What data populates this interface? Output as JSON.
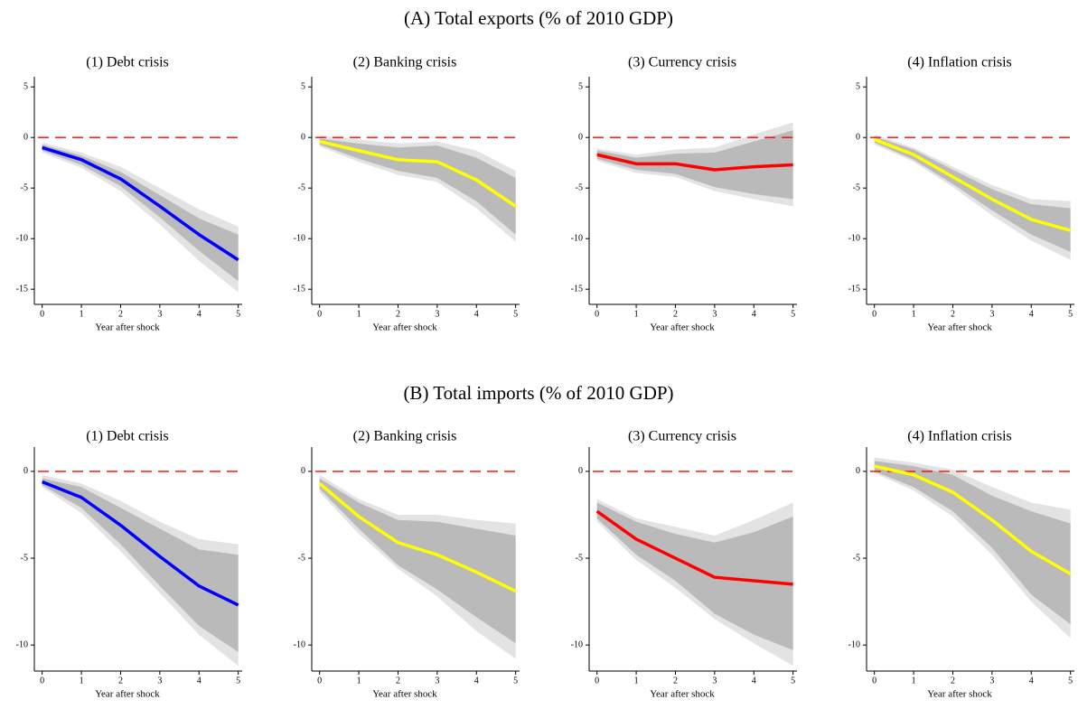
{
  "panel_titles": [
    "(A) Total exports (% of 2010 GDP)",
    "(B) Total imports (% of 2010 GDP)"
  ],
  "chart_data": [
    {
      "type": "line",
      "title": "(1) Debt crisis",
      "xlabel": "Year after shock",
      "x": [
        0,
        1,
        2,
        3,
        4,
        5
      ],
      "xlim": [
        -0.2,
        5.1
      ],
      "xticks": [
        0,
        1,
        2,
        3,
        4,
        5
      ],
      "ylim": [
        -16.5,
        6
      ],
      "yticks": [
        5,
        0,
        -5,
        -10,
        -15
      ],
      "hline": {
        "value": 0,
        "color": "#ff0000"
      },
      "bands": [
        {
          "color": "#e3e3e3",
          "lower": [
            -1.5,
            -3,
            -5.3,
            -8.6,
            -12.2,
            -15.3
          ],
          "upper": [
            -0.5,
            -1.5,
            -2.9,
            -5,
            -7.1,
            -8.8
          ]
        },
        {
          "color": "#bababa",
          "lower": [
            -1.3,
            -2.7,
            -4.8,
            -7.9,
            -11.2,
            -14.2
          ],
          "upper": [
            -0.7,
            -1.8,
            -3.4,
            -5.7,
            -8,
            -9.6
          ]
        }
      ],
      "series": [
        {
          "color": "#0000ff",
          "values": [
            -1,
            -2.2,
            -4.1,
            -6.8,
            -9.6,
            -12.1
          ]
        }
      ]
    },
    {
      "type": "line",
      "title": "(2) Banking crisis",
      "xlabel": "Year after shock",
      "x": [
        0,
        1,
        2,
        3,
        4,
        5
      ],
      "xlim": [
        -0.2,
        5.1
      ],
      "xticks": [
        0,
        1,
        2,
        3,
        4,
        5
      ],
      "ylim": [
        -16.5,
        6
      ],
      "yticks": [
        5,
        0,
        -5,
        -10,
        -15
      ],
      "hline": {
        "value": 0,
        "color": "#ff0000"
      },
      "bands": [
        {
          "color": "#e3e3e3",
          "lower": [
            -0.9,
            -2.4,
            -3.7,
            -4.4,
            -7,
            -10.3
          ],
          "upper": [
            0.2,
            -0.2,
            -0.6,
            -0.4,
            -1.3,
            -3.3
          ]
        },
        {
          "color": "#bababa",
          "lower": [
            -0.7,
            -2.1,
            -3.3,
            -4,
            -6.3,
            -9.6
          ],
          "upper": [
            -0.1,
            -0.6,
            -1,
            -0.8,
            -2,
            -4
          ]
        }
      ],
      "series": [
        {
          "color": "#ffff00",
          "values": [
            -0.4,
            -1.3,
            -2.2,
            -2.4,
            -4.2,
            -6.8
          ]
        }
      ]
    },
    {
      "type": "line",
      "title": "(3) Currency crisis",
      "xlabel": "Year after shock",
      "x": [
        0,
        1,
        2,
        3,
        4,
        5
      ],
      "xlim": [
        -0.2,
        5.1
      ],
      "xticks": [
        0,
        1,
        2,
        3,
        4,
        5
      ],
      "ylim": [
        -16.5,
        6
      ],
      "yticks": [
        5,
        0,
        -5,
        -10,
        -15
      ],
      "hline": {
        "value": 0,
        "color": "#ff0000"
      },
      "bands": [
        {
          "color": "#e3e3e3",
          "lower": [
            -2.3,
            -3.5,
            -3.9,
            -5.3,
            -6.1,
            -6.8
          ],
          "upper": [
            -1.1,
            -1.7,
            -1.2,
            -1,
            0.3,
            1.5
          ]
        },
        {
          "color": "#bababa",
          "lower": [
            -2.1,
            -3.2,
            -3.6,
            -4.9,
            -5.6,
            -6.1
          ],
          "upper": [
            -1.3,
            -2,
            -1.6,
            -1.5,
            -0.4,
            0.7
          ]
        }
      ],
      "series": [
        {
          "color": "#ff0000",
          "values": [
            -1.7,
            -2.6,
            -2.6,
            -3.2,
            -2.9,
            -2.7
          ]
        }
      ]
    },
    {
      "type": "line",
      "title": "(4) Inflation crisis",
      "xlabel": "Year after shock",
      "x": [
        0,
        1,
        2,
        3,
        4,
        5
      ],
      "xlim": [
        -0.2,
        5.1
      ],
      "xticks": [
        0,
        1,
        2,
        3,
        4,
        5
      ],
      "ylim": [
        -16.5,
        6
      ],
      "yticks": [
        5,
        0,
        -5,
        -10,
        -15
      ],
      "hline": {
        "value": 0,
        "color": "#ff0000"
      },
      "bands": [
        {
          "color": "#e3e3e3",
          "lower": [
            -0.7,
            -2.4,
            -4.9,
            -7.7,
            -10.2,
            -12.1
          ],
          "upper": [
            0.3,
            -1,
            -2.9,
            -4.7,
            -6.1,
            -6.3
          ]
        },
        {
          "color": "#bababa",
          "lower": [
            -0.5,
            -2.2,
            -4.6,
            -7.2,
            -9.6,
            -11.3
          ],
          "upper": [
            0.1,
            -1.2,
            -3.2,
            -5.1,
            -6.6,
            -7
          ]
        }
      ],
      "series": [
        {
          "color": "#ffff00",
          "values": [
            -0.2,
            -1.7,
            -3.9,
            -6.1,
            -8.1,
            -9.2
          ]
        }
      ]
    },
    {
      "type": "line",
      "title": "(1) Debt crisis",
      "xlabel": "Year after shock",
      "x": [
        0,
        1,
        2,
        3,
        4,
        5
      ],
      "xlim": [
        -0.2,
        5.1
      ],
      "xticks": [
        0,
        1,
        2,
        3,
        4,
        5
      ],
      "ylim": [
        -11.5,
        1.4
      ],
      "yticks": [
        0,
        -5,
        -10
      ],
      "hline": {
        "value": 0,
        "color": "#ff0000"
      },
      "bands": [
        {
          "color": "#e3e3e3",
          "lower": [
            -0.9,
            -2.4,
            -4.6,
            -7,
            -9.4,
            -11.2
          ],
          "upper": [
            -0.2,
            -0.7,
            -1.7,
            -2.9,
            -3.9,
            -4.2
          ]
        },
        {
          "color": "#bababa",
          "lower": [
            -0.8,
            -2.1,
            -4.2,
            -6.6,
            -8.9,
            -10.4
          ],
          "upper": [
            -0.4,
            -0.9,
            -2.1,
            -3.3,
            -4.5,
            -4.8
          ]
        }
      ],
      "series": [
        {
          "color": "#0000ff",
          "values": [
            -0.6,
            -1.5,
            -3.1,
            -4.9,
            -6.6,
            -7.7
          ]
        }
      ]
    },
    {
      "type": "line",
      "title": "(2) Banking crisis",
      "xlabel": "Year after shock",
      "x": [
        0,
        1,
        2,
        3,
        4,
        5
      ],
      "xlim": [
        -0.2,
        5.1
      ],
      "xticks": [
        0,
        1,
        2,
        3,
        4,
        5
      ],
      "ylim": [
        -11.5,
        1.4
      ],
      "yticks": [
        0,
        -5,
        -10
      ],
      "hline": {
        "value": 0,
        "color": "#ff0000"
      },
      "bands": [
        {
          "color": "#e3e3e3",
          "lower": [
            -1.2,
            -3.6,
            -5.6,
            -7.2,
            -9.2,
            -10.8
          ],
          "upper": [
            -0.2,
            -1.6,
            -2.5,
            -2.5,
            -2.8,
            -3
          ]
        },
        {
          "color": "#bababa",
          "lower": [
            -1,
            -3.3,
            -5.4,
            -6.8,
            -8.4,
            -9.9
          ],
          "upper": [
            -0.4,
            -1.8,
            -2.8,
            -2.9,
            -3.3,
            -3.7
          ]
        }
      ],
      "series": [
        {
          "color": "#ffff00",
          "values": [
            -0.7,
            -2.6,
            -4.1,
            -4.8,
            -5.8,
            -6.9
          ]
        }
      ]
    },
    {
      "type": "line",
      "title": "(3) Currency crisis",
      "xlabel": "Year after shock",
      "x": [
        0,
        1,
        2,
        3,
        4,
        5
      ],
      "xlim": [
        -0.2,
        5.1
      ],
      "xticks": [
        0,
        1,
        2,
        3,
        4,
        5
      ],
      "ylim": [
        -11.5,
        1.4
      ],
      "yticks": [
        0,
        -5,
        -10
      ],
      "hline": {
        "value": 0,
        "color": "#ff0000"
      },
      "bands": [
        {
          "color": "#e3e3e3",
          "lower": [
            -2.9,
            -5.1,
            -6.7,
            -8.5,
            -9.9,
            -11.2
          ],
          "upper": [
            -1.6,
            -2.7,
            -3.2,
            -3.7,
            -2.8,
            -1.8
          ]
        },
        {
          "color": "#bababa",
          "lower": [
            -2.7,
            -4.8,
            -6.3,
            -8.2,
            -9.4,
            -10.3
          ],
          "upper": [
            -1.8,
            -2.9,
            -3.6,
            -4.1,
            -3.5,
            -2.6
          ]
        }
      ],
      "series": [
        {
          "color": "#ff0000",
          "values": [
            -2.3,
            -3.9,
            -5,
            -6.1,
            -6.3,
            -6.5
          ]
        }
      ]
    },
    {
      "type": "line",
      "title": "(4) Inflation crisis",
      "xlabel": "Year after shock",
      "x": [
        0,
        1,
        2,
        3,
        4,
        5
      ],
      "xlim": [
        -0.2,
        5.1
      ],
      "xticks": [
        0,
        1,
        2,
        3,
        4,
        5
      ],
      "ylim": [
        -11.5,
        1.4
      ],
      "yticks": [
        0,
        -5,
        -10
      ],
      "hline": {
        "value": 0,
        "color": "#ff0000"
      },
      "bands": [
        {
          "color": "#e3e3e3",
          "lower": [
            -0.1,
            -1.1,
            -2.6,
            -4.8,
            -7.5,
            -9.6
          ],
          "upper": [
            0.8,
            0.5,
            0.1,
            -0.9,
            -1.8,
            -2.2
          ]
        },
        {
          "color": "#bababa",
          "lower": [
            0,
            -0.9,
            -2.3,
            -4.4,
            -7.1,
            -8.8
          ],
          "upper": [
            0.6,
            0.3,
            -0.2,
            -1.4,
            -2.3,
            -3
          ]
        }
      ],
      "series": [
        {
          "color": "#ffff00",
          "values": [
            0.3,
            -0.2,
            -1.2,
            -2.8,
            -4.6,
            -5.9
          ]
        }
      ]
    }
  ]
}
